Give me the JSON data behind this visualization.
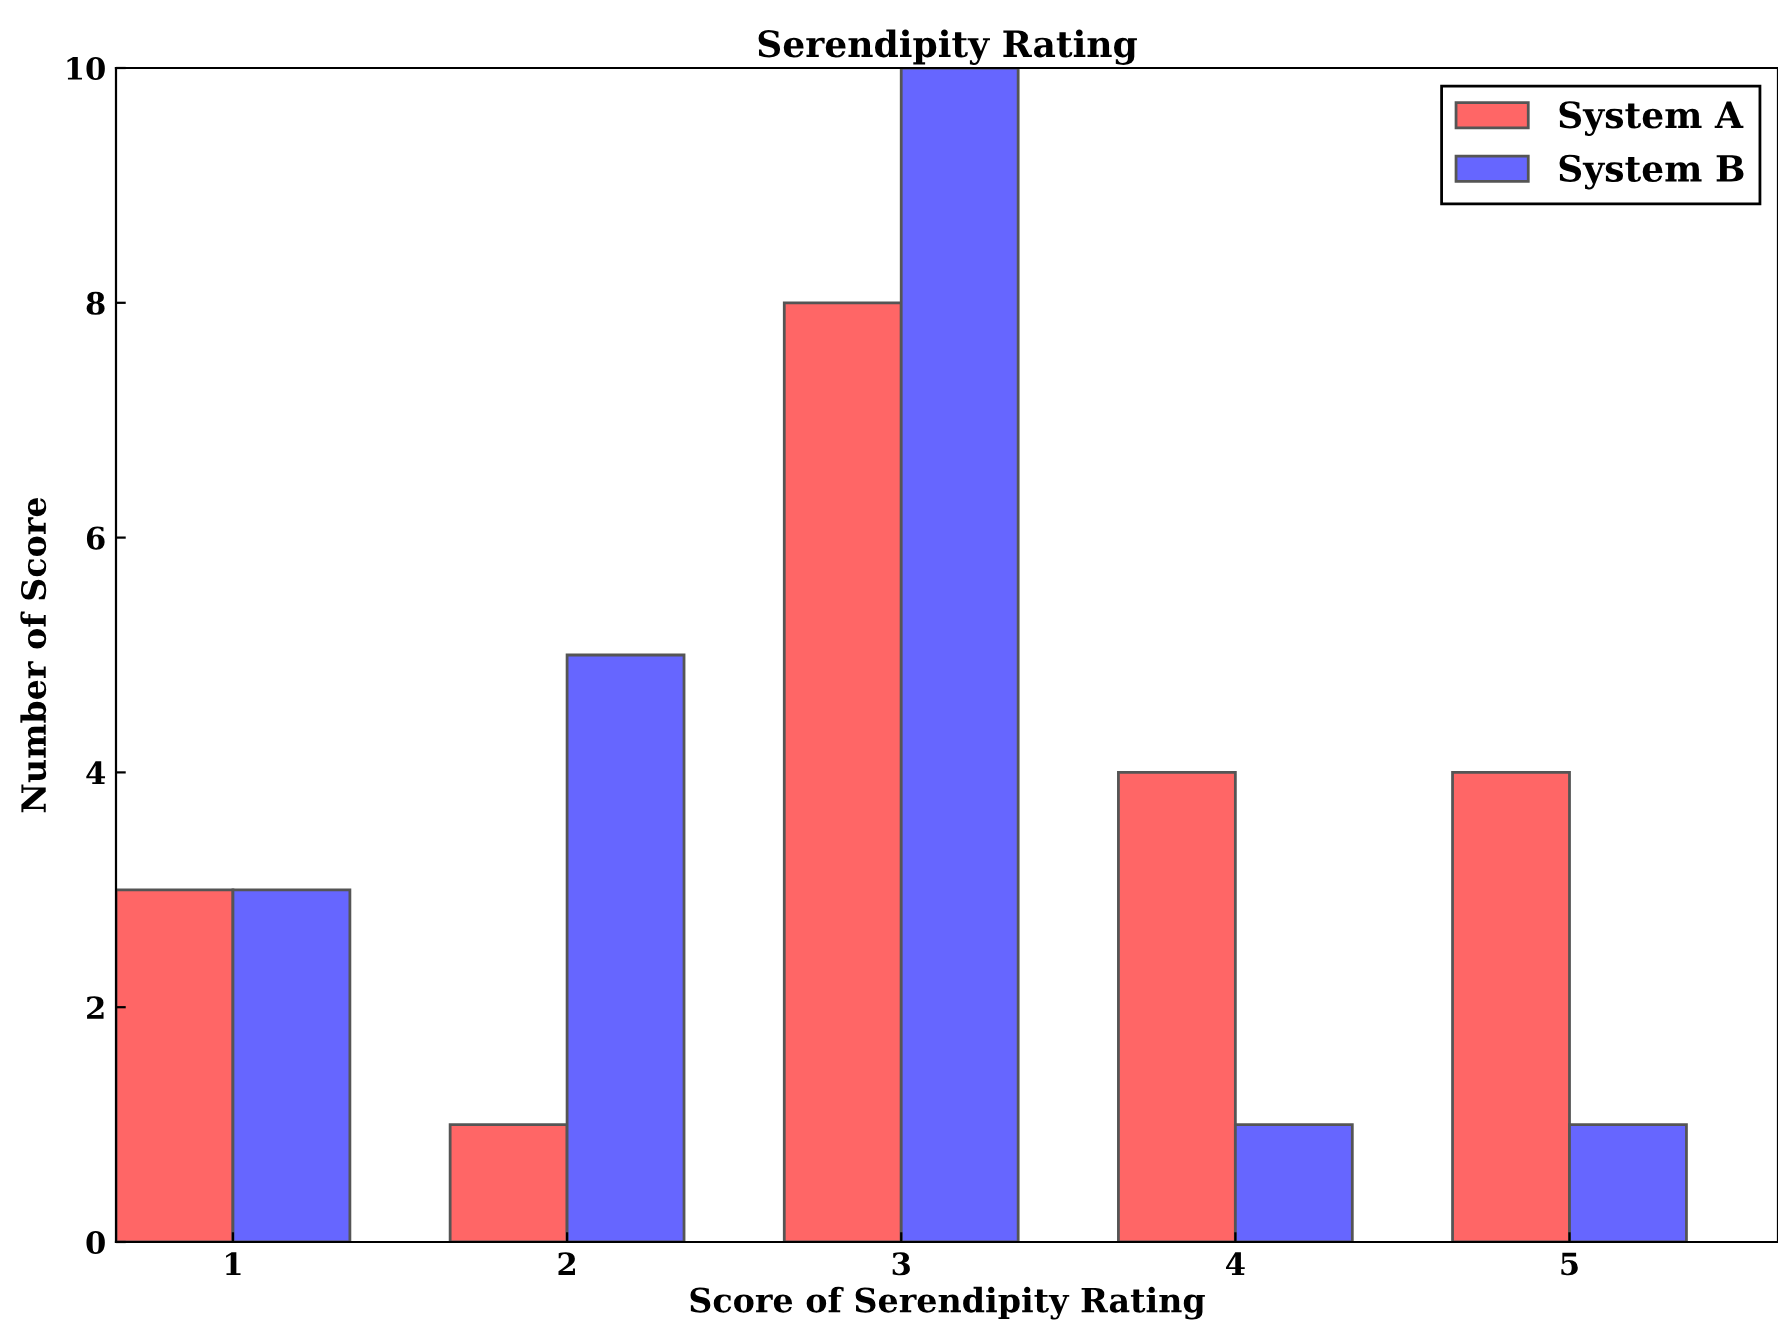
{
  "chart_data": {
    "type": "bar",
    "title": "Serendipity Rating",
    "xlabel": "Score of Serendipity Rating",
    "ylabel": "Number of Score",
    "categories": [
      "1",
      "2",
      "3",
      "4",
      "5"
    ],
    "series": [
      {
        "name": "System A",
        "color": "#ff6666",
        "values": [
          3,
          1,
          8,
          4,
          4
        ]
      },
      {
        "name": "System B",
        "color": "#6666ff",
        "values": [
          3,
          5,
          10,
          1,
          1
        ]
      }
    ],
    "ylim": [
      0,
      10
    ],
    "yticks": [
      0,
      2,
      4,
      6,
      8,
      10
    ],
    "grid": false,
    "legend": "top right"
  }
}
